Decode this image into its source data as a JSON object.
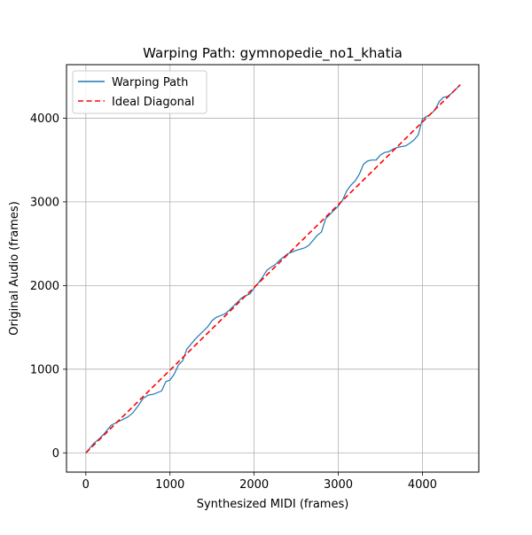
{
  "chart_data": {
    "type": "line",
    "title": "Warping Path: gymnopedie_no1_khatia",
    "xlabel": "Synthesized MIDI (frames)",
    "ylabel": "Original Audio (frames)",
    "xlim": [
      -230,
      4670
    ],
    "ylim": [
      -230,
      4640
    ],
    "xticks": [
      0,
      1000,
      2000,
      3000,
      4000
    ],
    "yticks": [
      0,
      1000,
      2000,
      3000,
      4000
    ],
    "xtick_labels": [
      "0",
      "1000",
      "2000",
      "3000",
      "4000"
    ],
    "ytick_labels": [
      "0",
      "1000",
      "2000",
      "3000",
      "4000"
    ],
    "grid": true,
    "legend_position": "top-left",
    "colors": {
      "warping": "#1f77b4",
      "ideal": "#ff0000",
      "grid": "#b0b0b0",
      "axes": "#000000"
    },
    "series": [
      {
        "name": "Warping Path",
        "style": "solid",
        "x": [
          0,
          50,
          100,
          150,
          220,
          300,
          400,
          500,
          560,
          620,
          680,
          740,
          800,
          900,
          950,
          1000,
          1050,
          1100,
          1150,
          1200,
          1250,
          1300,
          1350,
          1400,
          1450,
          1500,
          1550,
          1600,
          1650,
          1700,
          1800,
          1850,
          1900,
          1950,
          2000,
          2050,
          2100,
          2150,
          2200,
          2250,
          2300,
          2350,
          2400,
          2500,
          2600,
          2650,
          2700,
          2750,
          2800,
          2850,
          2900,
          2950,
          3000,
          3050,
          3100,
          3150,
          3200,
          3250,
          3300,
          3350,
          3400,
          3450,
          3500,
          3550,
          3600,
          3650,
          3700,
          3750,
          3800,
          3850,
          3900,
          3950,
          4000,
          4050,
          4100,
          4150,
          4200,
          4250,
          4300,
          4350,
          4400,
          4450
        ],
        "y": [
          0,
          60,
          120,
          160,
          230,
          330,
          380,
          430,
          480,
          560,
          650,
          690,
          700,
          740,
          850,
          870,
          940,
          1050,
          1100,
          1240,
          1300,
          1360,
          1410,
          1460,
          1510,
          1580,
          1620,
          1640,
          1660,
          1700,
          1800,
          1850,
          1880,
          1900,
          1970,
          2030,
          2100,
          2180,
          2220,
          2250,
          2300,
          2340,
          2380,
          2420,
          2450,
          2480,
          2540,
          2600,
          2640,
          2800,
          2850,
          2900,
          2950,
          3020,
          3130,
          3200,
          3250,
          3330,
          3450,
          3490,
          3500,
          3500,
          3560,
          3590,
          3600,
          3630,
          3650,
          3660,
          3670,
          3700,
          3740,
          3800,
          3990,
          4020,
          4050,
          4100,
          4200,
          4250,
          4260,
          4300,
          4350,
          4400
        ]
      },
      {
        "name": "Ideal Diagonal",
        "style": "dashed",
        "x": [
          0,
          4450
        ],
        "y": [
          0,
          4400
        ]
      }
    ]
  }
}
